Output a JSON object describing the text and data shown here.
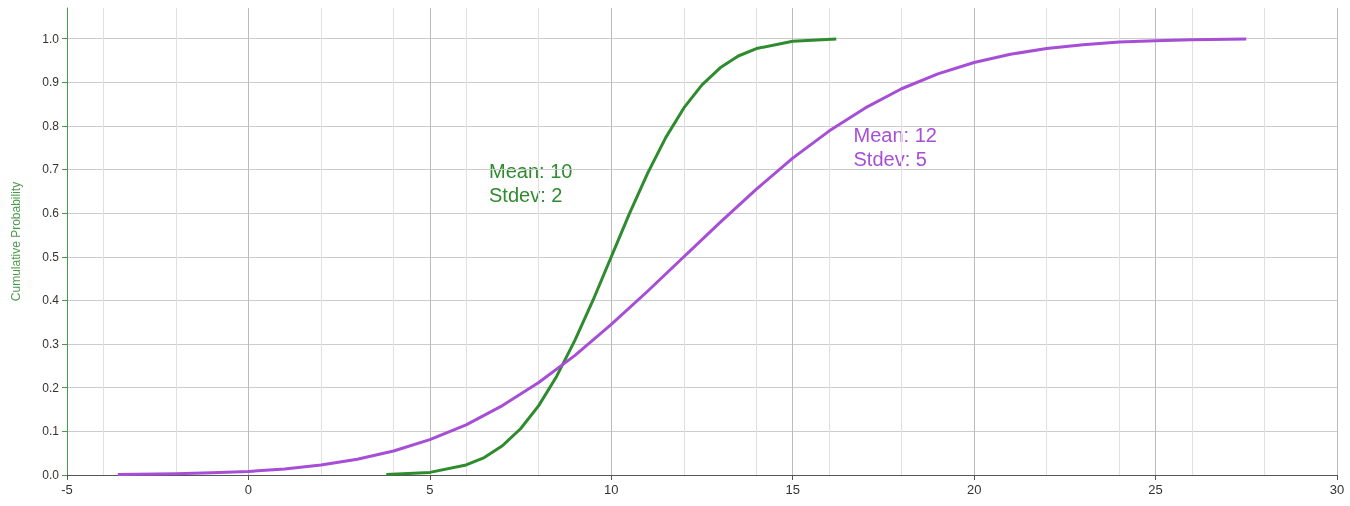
{
  "chart_data": {
    "type": "line",
    "ylabel": "Cumulative Probability",
    "series": [
      {
        "color": "#2e8b2e",
        "x": [
          3.8,
          5,
          6,
          6.5,
          7,
          7.5,
          8,
          8.5,
          9,
          9.5,
          10,
          10.5,
          11,
          11.5,
          12,
          12.5,
          13,
          13.5,
          14,
          15,
          16.2
        ],
        "values": [
          0.001,
          0.006,
          0.023,
          0.04,
          0.067,
          0.106,
          0.159,
          0.227,
          0.309,
          0.401,
          0.5,
          0.599,
          0.691,
          0.773,
          0.841,
          0.894,
          0.933,
          0.96,
          0.977,
          0.994,
          0.999
        ]
      },
      {
        "color": "#a64fd6",
        "x": [
          -3.6,
          -2,
          -1,
          0,
          1,
          2,
          3,
          4,
          5,
          6,
          7,
          8,
          9,
          10,
          11,
          12,
          13,
          14,
          15,
          16,
          17,
          18,
          19,
          20,
          21,
          22,
          23,
          24,
          25,
          26,
          27.5
        ],
        "values": [
          0.001,
          0.003,
          0.005,
          0.008,
          0.014,
          0.023,
          0.036,
          0.055,
          0.081,
          0.115,
          0.159,
          0.212,
          0.274,
          0.345,
          0.421,
          0.5,
          0.579,
          0.655,
          0.726,
          0.788,
          0.841,
          0.885,
          0.919,
          0.945,
          0.964,
          0.977,
          0.986,
          0.992,
          0.995,
          0.997,
          0.999
        ]
      }
    ],
    "annotations": [
      "Mean: 10\nStdev: 2",
      "Mean: 12\nStdev: 5"
    ],
    "xlim": [
      -5,
      30
    ],
    "xticks": [
      -5,
      0,
      5,
      10,
      15,
      20,
      25,
      30
    ],
    "ylim": [
      0,
      1.07
    ],
    "yticks": [
      {
        "value": 0,
        "label": "0.0"
      },
      0.1,
      0.2,
      0.3,
      0.4,
      0.5,
      0.6,
      0.7,
      0.8,
      0.9,
      {
        "value": 1,
        "label": "1.0"
      }
    ],
    "grid": true,
    "marker": "none",
    "line_style": "solid"
  }
}
